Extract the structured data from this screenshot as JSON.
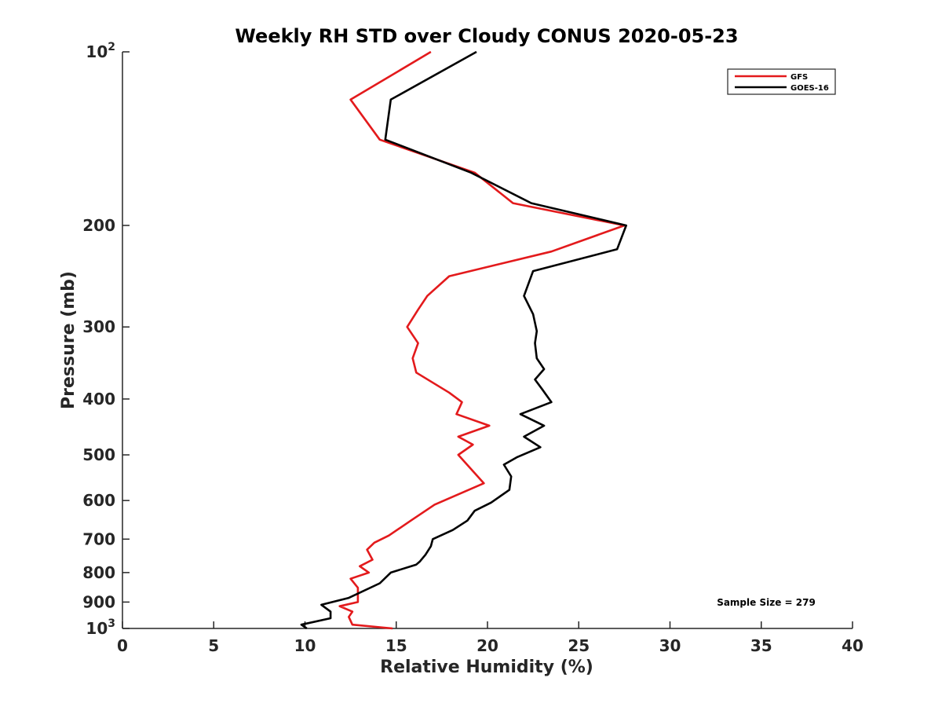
{
  "chart_data": {
    "type": "line",
    "title": "Weekly RH STD over Cloudy CONUS 2020-05-23",
    "xlabel": "Relative Humidity (%)",
    "ylabel": "Pressure (mb)",
    "xlim": [
      0,
      40
    ],
    "ylim": [
      100,
      1000
    ],
    "y_scale": "log",
    "y_reversed": true,
    "grid": false,
    "legend_position": "top-right",
    "x_ticks": [
      "0",
      "5",
      "10",
      "15",
      "20",
      "25",
      "30",
      "35",
      "40"
    ],
    "y_ticks": [
      {
        "value": 100,
        "base": "10",
        "exp": "2"
      },
      {
        "value": 200,
        "label": "200"
      },
      {
        "value": 300,
        "label": "300"
      },
      {
        "value": 400,
        "label": "400"
      },
      {
        "value": 500,
        "label": "500"
      },
      {
        "value": 600,
        "label": "600"
      },
      {
        "value": 700,
        "label": "700"
      },
      {
        "value": 800,
        "label": "800"
      },
      {
        "value": 900,
        "label": "900"
      },
      {
        "value": 1000,
        "base": "10",
        "exp": "3"
      }
    ],
    "series": [
      {
        "name": "GFS",
        "color": "#e31a1c",
        "x": [
          16.9,
          12.5,
          14.1,
          19.3,
          21.4,
          27.5,
          23.5,
          17.9,
          16.7,
          16.2,
          15.6,
          16.2,
          15.9,
          16.1,
          17.9,
          18.6,
          18.3,
          20.1,
          18.4,
          19.2,
          18.4,
          19.8,
          17.1,
          15.8,
          14.6,
          13.8,
          13.4,
          13.7,
          13.0,
          13.5,
          12.5,
          12.9,
          12.9,
          12.9,
          11.9,
          12.6,
          12.4,
          12.6,
          14.8
        ],
        "y": [
          100,
          121,
          142,
          162,
          183,
          200,
          222,
          245,
          265,
          280,
          300,
          320,
          340,
          360,
          390,
          405,
          425,
          445,
          465,
          480,
          500,
          560,
          610,
          650,
          690,
          710,
          730,
          760,
          780,
          800,
          820,
          850,
          875,
          900,
          915,
          935,
          955,
          985,
          1000
        ]
      },
      {
        "name": "GOES-16",
        "color": "#000000",
        "x": [
          19.4,
          14.7,
          14.4,
          19.1,
          22.4,
          27.6,
          27.1,
          22.5,
          22.0,
          22.5,
          22.7,
          22.6,
          22.7,
          23.1,
          22.6,
          23.0,
          23.5,
          21.8,
          23.1,
          22.0,
          22.9,
          21.6,
          20.9,
          21.3,
          21.2,
          20.2,
          19.3,
          18.9,
          18.1,
          17.0,
          16.9,
          16.6,
          16.3,
          16.1,
          14.7,
          14.1,
          12.4,
          10.9,
          11.4,
          11.4,
          9.8,
          10.1
        ],
        "y": [
          100,
          121,
          142,
          162,
          183,
          200,
          220,
          240,
          265,
          285,
          305,
          320,
          340,
          355,
          370,
          385,
          405,
          425,
          445,
          465,
          485,
          505,
          520,
          545,
          575,
          605,
          625,
          650,
          675,
          700,
          720,
          745,
          765,
          775,
          800,
          835,
          885,
          910,
          935,
          960,
          985,
          1000
        ]
      }
    ],
    "annotations": [
      "Sample Size = 279"
    ]
  }
}
